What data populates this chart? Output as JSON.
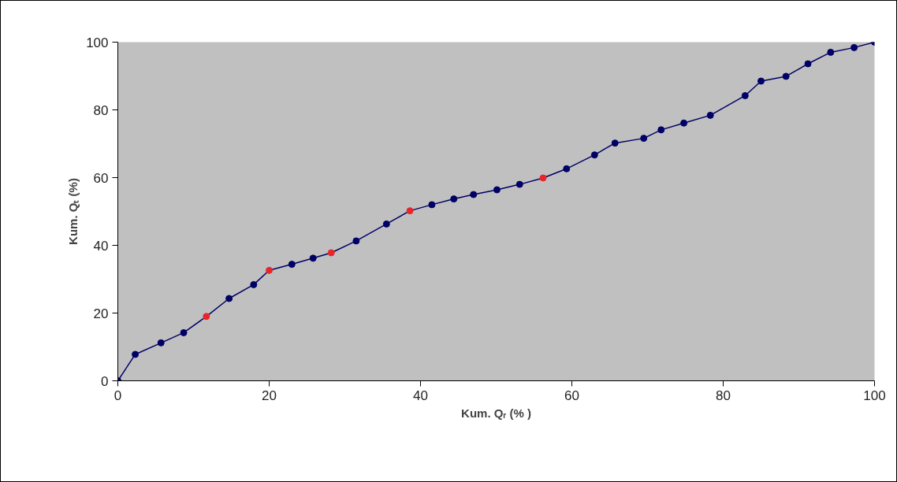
{
  "chart_data": {
    "type": "line",
    "xlabel": "Kum. Qᵣ (% )",
    "ylabel": "Kum. Qₜ (%)",
    "x": [
      0,
      2.3,
      5.7,
      8.7,
      11.7,
      14.7,
      17.95,
      20.0,
      23.0,
      25.8,
      28.2,
      31.5,
      35.5,
      38.6,
      41.5,
      44.4,
      47.0,
      50.1,
      53.1,
      56.2,
      59.3,
      63.0,
      65.7,
      69.5,
      71.8,
      74.8,
      78.3,
      82.9,
      85.0,
      88.3,
      91.2,
      94.2,
      97.3,
      100
    ],
    "series": [
      {
        "color": "#000066",
        "values": [
          0,
          7.8,
          11.2,
          14.2,
          19.0,
          24.3,
          28.4,
          32.6,
          34.4,
          36.2,
          37.8,
          41.3,
          46.3,
          50.2,
          52.0,
          53.7,
          55.0,
          56.4,
          58.0,
          59.9,
          62.6,
          66.7,
          70.2,
          71.6,
          74.1,
          76.1,
          78.4,
          84.2,
          88.5,
          89.9,
          93.6,
          97.0,
          98.4,
          100
        ],
        "colors": [
          "#000066",
          "#000066",
          "#000066",
          "#000066",
          "#e8262a",
          "#000066",
          "#000066",
          "#e8262a",
          "#000066",
          "#000066",
          "#e8262a",
          "#000066",
          "#000066",
          "#e8262a",
          "#000066",
          "#000066",
          "#000066",
          "#000066",
          "#000066",
          "#e8262a",
          "#000066",
          "#000066",
          "#000066",
          "#000066",
          "#000066",
          "#000066",
          "#000066",
          "#000066",
          "#000066",
          "#000066",
          "#000066",
          "#000066",
          "#000066",
          "#000066"
        ]
      }
    ],
    "xlim": [
      0,
      100
    ],
    "ylim": [
      0,
      100
    ],
    "xticks": [
      0,
      20,
      40,
      60,
      80,
      100
    ],
    "yticks": [
      0,
      20,
      40,
      60,
      80,
      100
    ],
    "grid": false,
    "marker": "circle",
    "line_style": "solid"
  }
}
